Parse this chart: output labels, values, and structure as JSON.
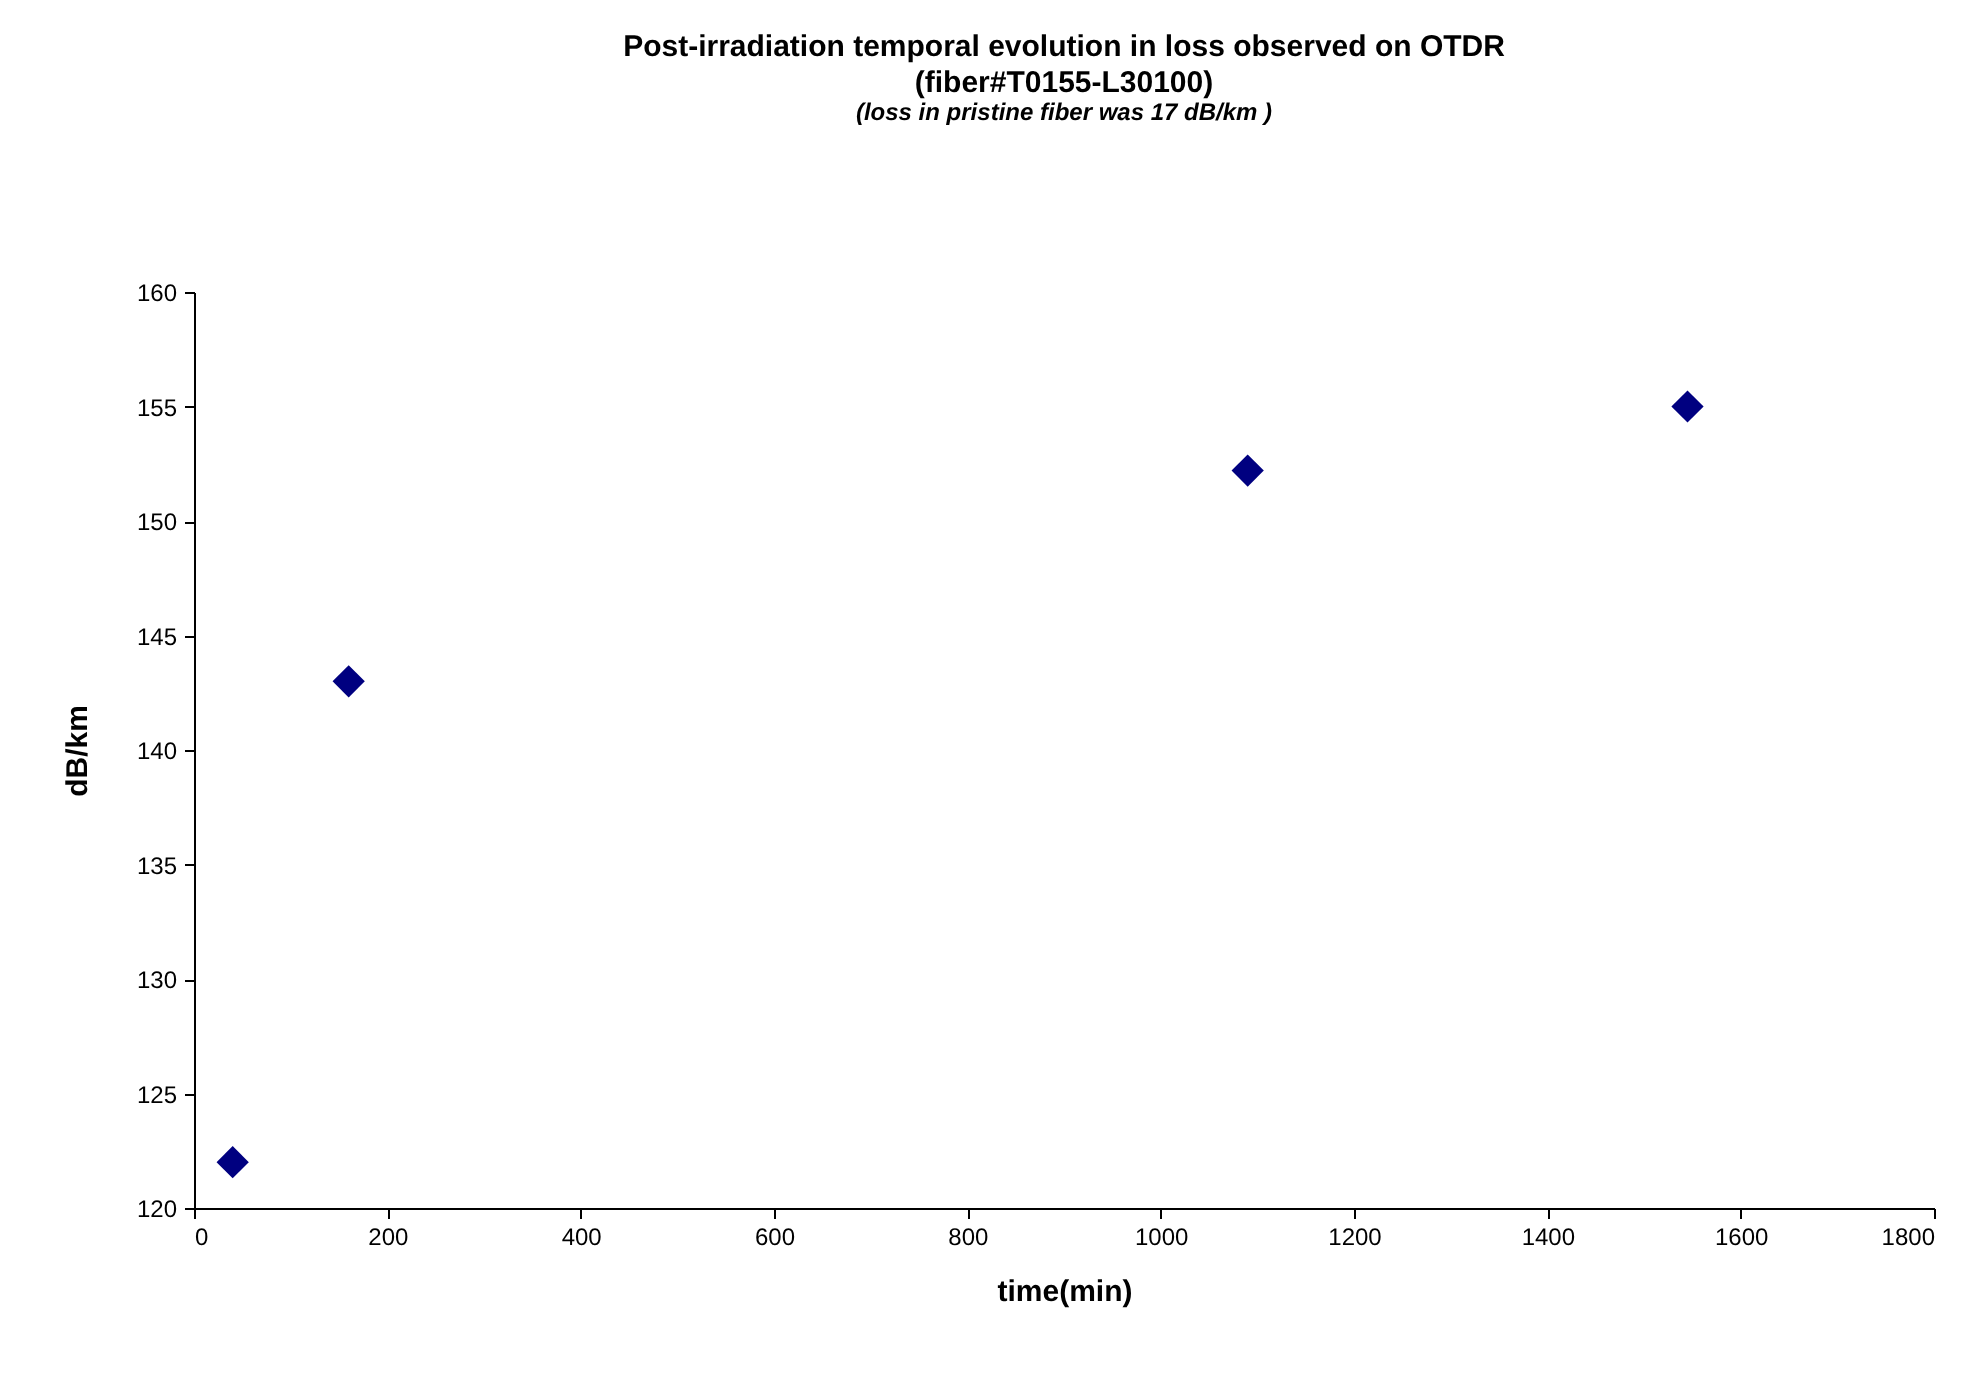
{
  "chart_data": {
    "type": "scatter",
    "title": "Post-irradiation temporal evolution in loss observed on OTDR",
    "subtitle": "(fiber#T0155-L30100)",
    "annotations": [
      "(loss in pristine fiber was 17 dB/km )"
    ],
    "xlabel": "time(min)",
    "ylabel": "dB/km",
    "x": [
      40,
      160,
      1090,
      1545
    ],
    "series": [
      {
        "color": "#000080",
        "values": [
          122,
          143,
          152.2,
          155
        ]
      }
    ],
    "xlim": [
      0,
      1800
    ],
    "xticks": [
      0,
      200,
      400,
      600,
      800,
      1000,
      1200,
      1400,
      1600,
      1800
    ],
    "ylim": [
      120,
      160
    ],
    "yticks": [
      120,
      125,
      130,
      135,
      140,
      145,
      150,
      155,
      160
    ],
    "marker": "diamond",
    "grid": false
  }
}
